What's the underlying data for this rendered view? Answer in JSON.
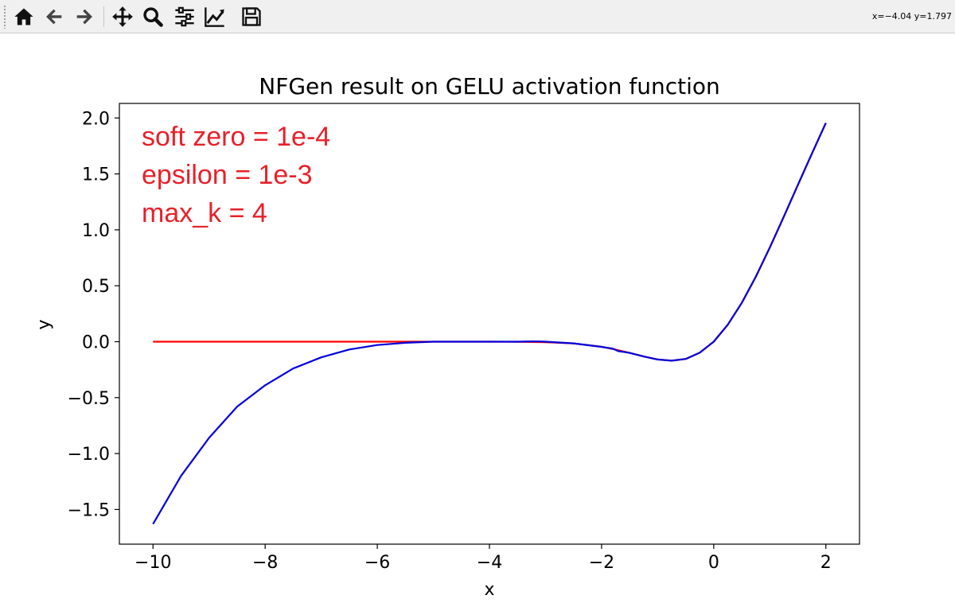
{
  "toolbar": {
    "buttons": [
      {
        "name": "home-icon",
        "label": "Home"
      },
      {
        "name": "back-icon",
        "label": "Back"
      },
      {
        "name": "forward-icon",
        "label": "Forward"
      },
      {
        "name": "pan-icon",
        "label": "Pan"
      },
      {
        "name": "zoom-icon",
        "label": "Zoom"
      },
      {
        "name": "configure-subplots-icon",
        "label": "Subplots"
      },
      {
        "name": "edit-axis-icon",
        "label": "Customize"
      },
      {
        "name": "save-icon",
        "label": "Save"
      }
    ],
    "coords": "x=−4.04 y=1.797"
  },
  "chart_data": {
    "type": "line",
    "title": "NFGen result on GELU activation function",
    "xlabel": "x",
    "ylabel": "y",
    "xlim": [
      -10.6,
      2.6
    ],
    "ylim": [
      -1.81,
      2.13
    ],
    "xticks": [
      -10,
      -8,
      -6,
      -4,
      -2,
      0,
      2
    ],
    "xtick_labels": [
      "−10",
      "−8",
      "−6",
      "−4",
      "−2",
      "0",
      "2"
    ],
    "yticks": [
      -1.5,
      -1.0,
      -0.5,
      0.0,
      0.5,
      1.0,
      1.5,
      2.0
    ],
    "ytick_labels": [
      "−1.5",
      "−1.0",
      "−0.5",
      "0.0",
      "0.5",
      "1.0",
      "1.5",
      "2.0"
    ],
    "grid": false,
    "annotations": [
      "soft zero = 1e-4",
      "epsilon = 1e-3",
      "max_k = 4"
    ],
    "annotation_color": "#e8202a",
    "series": [
      {
        "color": "#ff0000",
        "x": [
          -10,
          -9,
          -8,
          -7,
          -6,
          -5,
          -4,
          -3.5,
          -3,
          -2.5,
          -2,
          -1.75,
          -1.5,
          -1.25,
          -1,
          -0.75,
          -0.5,
          -0.25,
          0,
          0.25,
          0.5,
          0.75,
          1,
          1.25,
          1.5,
          1.75,
          2
        ],
        "y": [
          0.0,
          0.0,
          0.0,
          0.0,
          0.0,
          0.0,
          -0.0001,
          -0.0008,
          -0.004,
          -0.0155,
          -0.0455,
          -0.0701,
          -0.1002,
          -0.132,
          -0.1587,
          -0.17,
          -0.1543,
          -0.0987,
          0.0,
          0.1513,
          0.3457,
          0.58,
          0.8413,
          1.118,
          1.3998,
          1.6799,
          1.9545
        ]
      },
      {
        "color": "#0000dd",
        "x": [
          -10,
          -9.5,
          -9,
          -8.5,
          -8,
          -7.5,
          -7,
          -6.5,
          -6,
          -5.5,
          -5,
          -4.5,
          -4,
          -3.5,
          -3.25,
          -3.1,
          -3,
          -2.5,
          -2,
          -1.8,
          -1.7,
          -1.6,
          -1.5,
          -1.25,
          -1,
          -0.75,
          -0.5,
          -0.25,
          0,
          0.25,
          0.5,
          0.75,
          1,
          1.25,
          1.5,
          1.75,
          2
        ],
        "y": [
          -1.63,
          -1.2,
          -0.86,
          -0.58,
          -0.39,
          -0.24,
          -0.14,
          -0.07,
          -0.03,
          -0.01,
          0.0,
          0.0,
          0.0,
          0.0,
          0.003,
          0.002,
          0.0,
          -0.015,
          -0.046,
          -0.062,
          -0.085,
          -0.092,
          -0.1,
          -0.132,
          -0.159,
          -0.17,
          -0.154,
          -0.099,
          0.0,
          0.151,
          0.346,
          0.58,
          0.841,
          1.118,
          1.4,
          1.68,
          1.955
        ]
      }
    ]
  }
}
